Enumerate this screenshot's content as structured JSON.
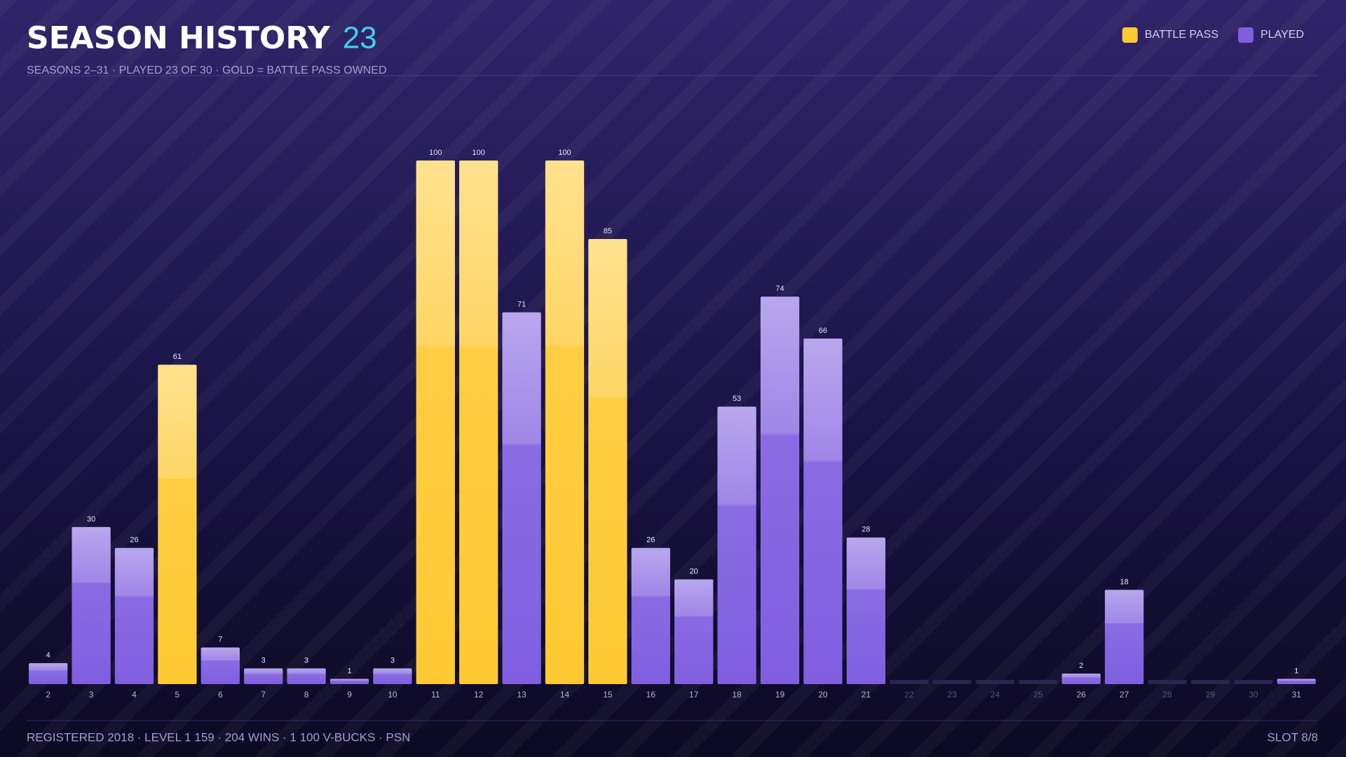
{
  "chart_data": {
    "type": "bar",
    "title": "SEASON HISTORY",
    "season_count": "23",
    "subtitle": "SEASONS 2–31 · PLAYED 23 OF 30 · GOLD = BATTLE PASS OWNED",
    "categories": [
      "2",
      "3",
      "4",
      "5",
      "6",
      "7",
      "8",
      "9",
      "10",
      "11",
      "12",
      "13",
      "14",
      "15",
      "16",
      "17",
      "18",
      "19",
      "20",
      "21",
      "22",
      "23",
      "24",
      "25",
      "26",
      "27",
      "28",
      "29",
      "30",
      "31"
    ],
    "series": [
      {
        "name": "BATTLE PASS",
        "color": "#ffc933",
        "values": [
          null,
          null,
          null,
          61,
          null,
          null,
          null,
          null,
          null,
          100,
          100,
          null,
          100,
          85,
          null,
          null,
          null,
          null,
          null,
          null,
          null,
          null,
          null,
          null,
          null,
          null,
          null,
          null,
          null,
          null
        ]
      },
      {
        "name": "PLAYED",
        "color": "#7f5fe0",
        "values": [
          4,
          30,
          26,
          null,
          7,
          3,
          3,
          1,
          3,
          null,
          null,
          71,
          null,
          null,
          26,
          20,
          53,
          74,
          66,
          28,
          null,
          null,
          null,
          null,
          2,
          18,
          null,
          null,
          null,
          1
        ]
      }
    ],
    "ylim": [
      0,
      100
    ],
    "legend": "top-right"
  },
  "footer": {
    "left": "REGISTERED 2018 · LEVEL 1 159 · 204 WINS · 1 100 V-BUCKS · PSN",
    "right": "SLOT 8/8"
  }
}
